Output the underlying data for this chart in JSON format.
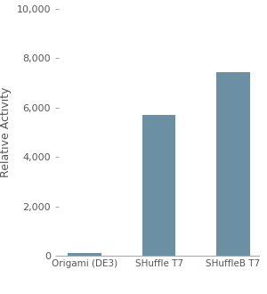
{
  "categories": [
    "Origami (DE3)",
    "SHuffle T7",
    "SHuffleB T7"
  ],
  "values": [
    120,
    5700,
    7450
  ],
  "bar_color": "#6b8fa3",
  "ylabel": "Relative Activity",
  "ylim": [
    0,
    10000
  ],
  "yticks": [
    0,
    2000,
    4000,
    6000,
    8000,
    10000
  ],
  "ytick_labels": [
    "0",
    "2,000",
    "4,000",
    "6,000",
    "8,000",
    "10,000"
  ],
  "bar_width": 0.45,
  "ylabel_fontsize": 9,
  "tick_fontsize": 8,
  "xtick_fontsize": 7.5,
  "background_color": "#ffffff",
  "figsize": [
    3.0,
    3.3
  ],
  "dpi": 100
}
